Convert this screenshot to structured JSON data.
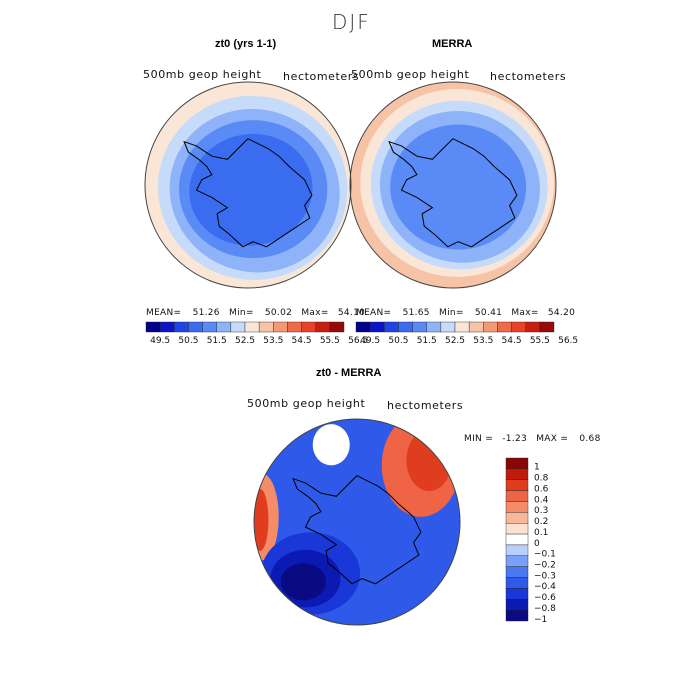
{
  "figure_title": "DJF",
  "colors": {
    "seq": [
      "#00008a",
      "#0a14c8",
      "#1e46e6",
      "#3a6cf0",
      "#5a8af5",
      "#8fb3f8",
      "#c6daf9",
      "#fae6d6",
      "#f7c3a6",
      "#f39a74",
      "#ef6a48",
      "#e8432a",
      "#c81e12",
      "#960a0a"
    ],
    "div": [
      "#0a0a82",
      "#0c1ab4",
      "#1a38d8",
      "#2f5ae9",
      "#4a78f2",
      "#7aa0f7",
      "#b8d0fb",
      "#ffffff",
      "#fce0d2",
      "#f8b796",
      "#f48c68",
      "#ef6444",
      "#e03c20",
      "#c01a0c",
      "#8a0606"
    ],
    "coast": "#000000",
    "rim": "#444444"
  },
  "chart_data": [
    {
      "type": "heatmap",
      "projection": "south-polar-stereographic",
      "title": "zt0 (yrs 1-1)",
      "subtitle_left": "500mb geop height",
      "subtitle_right": "hectometers",
      "stats": {
        "mean_label": "MEAN=",
        "mean": "51.26",
        "min_label": "Min=",
        "min": "50.02",
        "max_label": "Max=",
        "max": "54.10"
      },
      "levels": [
        "49.5",
        "50.5",
        "51.5",
        "52.5",
        "53.5",
        "54.5",
        "55.5",
        "56.5"
      ],
      "field": [
        {
          "level_index": 6,
          "r": 1.0,
          "cx": 0,
          "cy": 0,
          "rot": 0,
          "squash": 1
        },
        {
          "level_index": 5,
          "r": 0.92,
          "cx": 0.05,
          "cy": 0.02,
          "rot": 10,
          "squash": 0.97
        },
        {
          "level_index": 4,
          "r": 0.83,
          "cx": 0.08,
          "cy": 0.03,
          "rot": 20,
          "squash": 0.95
        },
        {
          "level_index": 3,
          "r": 0.72,
          "cx": 0.05,
          "cy": 0.04,
          "rot": 0,
          "squash": 0.93
        },
        {
          "level_index": 2,
          "r": 0.6,
          "cx": 0.02,
          "cy": 0.05,
          "rot": -10,
          "squash": 0.9
        }
      ]
    },
    {
      "type": "heatmap",
      "projection": "south-polar-stereographic",
      "title": "MERRA",
      "subtitle_left": "500mb geop height",
      "subtitle_right": "hectometers",
      "stats": {
        "mean_label": "MEAN=",
        "mean": "51.65",
        "min_label": "Min=",
        "min": "50.41",
        "max_label": "Max=",
        "max": "54.20"
      },
      "levels": [
        "49.5",
        "50.5",
        "51.5",
        "52.5",
        "53.5",
        "54.5",
        "55.5",
        "56.5"
      ],
      "field": [
        {
          "level_index": 7,
          "r": 1.0,
          "cx": 0,
          "cy": 0,
          "rot": 0,
          "squash": 1
        },
        {
          "level_index": 6,
          "r": 0.94,
          "cx": 0.04,
          "cy": -0.02,
          "rot": 0,
          "squash": 0.97
        },
        {
          "level_index": 5,
          "r": 0.86,
          "cx": 0.06,
          "cy": -0.01,
          "rot": 10,
          "squash": 0.95
        },
        {
          "level_index": 4,
          "r": 0.78,
          "cx": 0.07,
          "cy": 0.0,
          "rot": 15,
          "squash": 0.94
        },
        {
          "level_index": 3,
          "r": 0.66,
          "cx": 0.05,
          "cy": 0.02,
          "rot": 0,
          "squash": 0.92
        }
      ]
    },
    {
      "type": "heatmap",
      "projection": "south-polar-stereographic",
      "title": "zt0 - MERRA",
      "subtitle_left": "500mb geop height",
      "subtitle_right": "hectometers",
      "stats": {
        "min_label": "MIN =",
        "min": "-1.23",
        "max_label": "MAX =",
        "max": "0.68"
      },
      "levels": [
        "1",
        "0.8",
        "0.6",
        "0.4",
        "0.3",
        "0.2",
        "0.1",
        "0",
        "-0.1",
        "-0.2",
        "-0.3",
        "-0.4",
        "-0.6",
        "-0.8",
        "-1"
      ],
      "anomalies": [
        {
          "level_index": 5,
          "value": -0.4,
          "cx": 0.0,
          "cy": 0.0,
          "rx": 1.0,
          "ry": 1.0
        },
        {
          "level_index": 11,
          "value": 0.4,
          "cx": 0.62,
          "cy": -0.55,
          "rx": 0.38,
          "ry": 0.5
        },
        {
          "level_index": 12,
          "value": 0.6,
          "cx": 0.7,
          "cy": -0.6,
          "rx": 0.22,
          "ry": 0.3
        },
        {
          "level_index": 10,
          "value": 0.3,
          "cx": -0.92,
          "cy": -0.05,
          "rx": 0.16,
          "ry": 0.42
        },
        {
          "level_index": 12,
          "value": 0.6,
          "cx": -0.94,
          "cy": -0.02,
          "rx": 0.08,
          "ry": 0.3
        },
        {
          "level_index": 7,
          "value": 0.0,
          "cx": -0.25,
          "cy": -0.75,
          "rx": 0.18,
          "ry": 0.2
        },
        {
          "level_index": 3,
          "value": -0.6,
          "cx": -0.45,
          "cy": 0.5,
          "rx": 0.48,
          "ry": 0.4
        },
        {
          "level_index": 1,
          "value": -0.8,
          "cx": -0.5,
          "cy": 0.55,
          "rx": 0.34,
          "ry": 0.28
        },
        {
          "level_index": 0,
          "value": -1.0,
          "cx": -0.52,
          "cy": 0.58,
          "rx": 0.22,
          "ry": 0.18
        },
        {
          "level_index": 4,
          "value": -0.4,
          "cx": 0.25,
          "cy": 0.1,
          "rx": 0.3,
          "ry": 0.22
        }
      ]
    }
  ]
}
